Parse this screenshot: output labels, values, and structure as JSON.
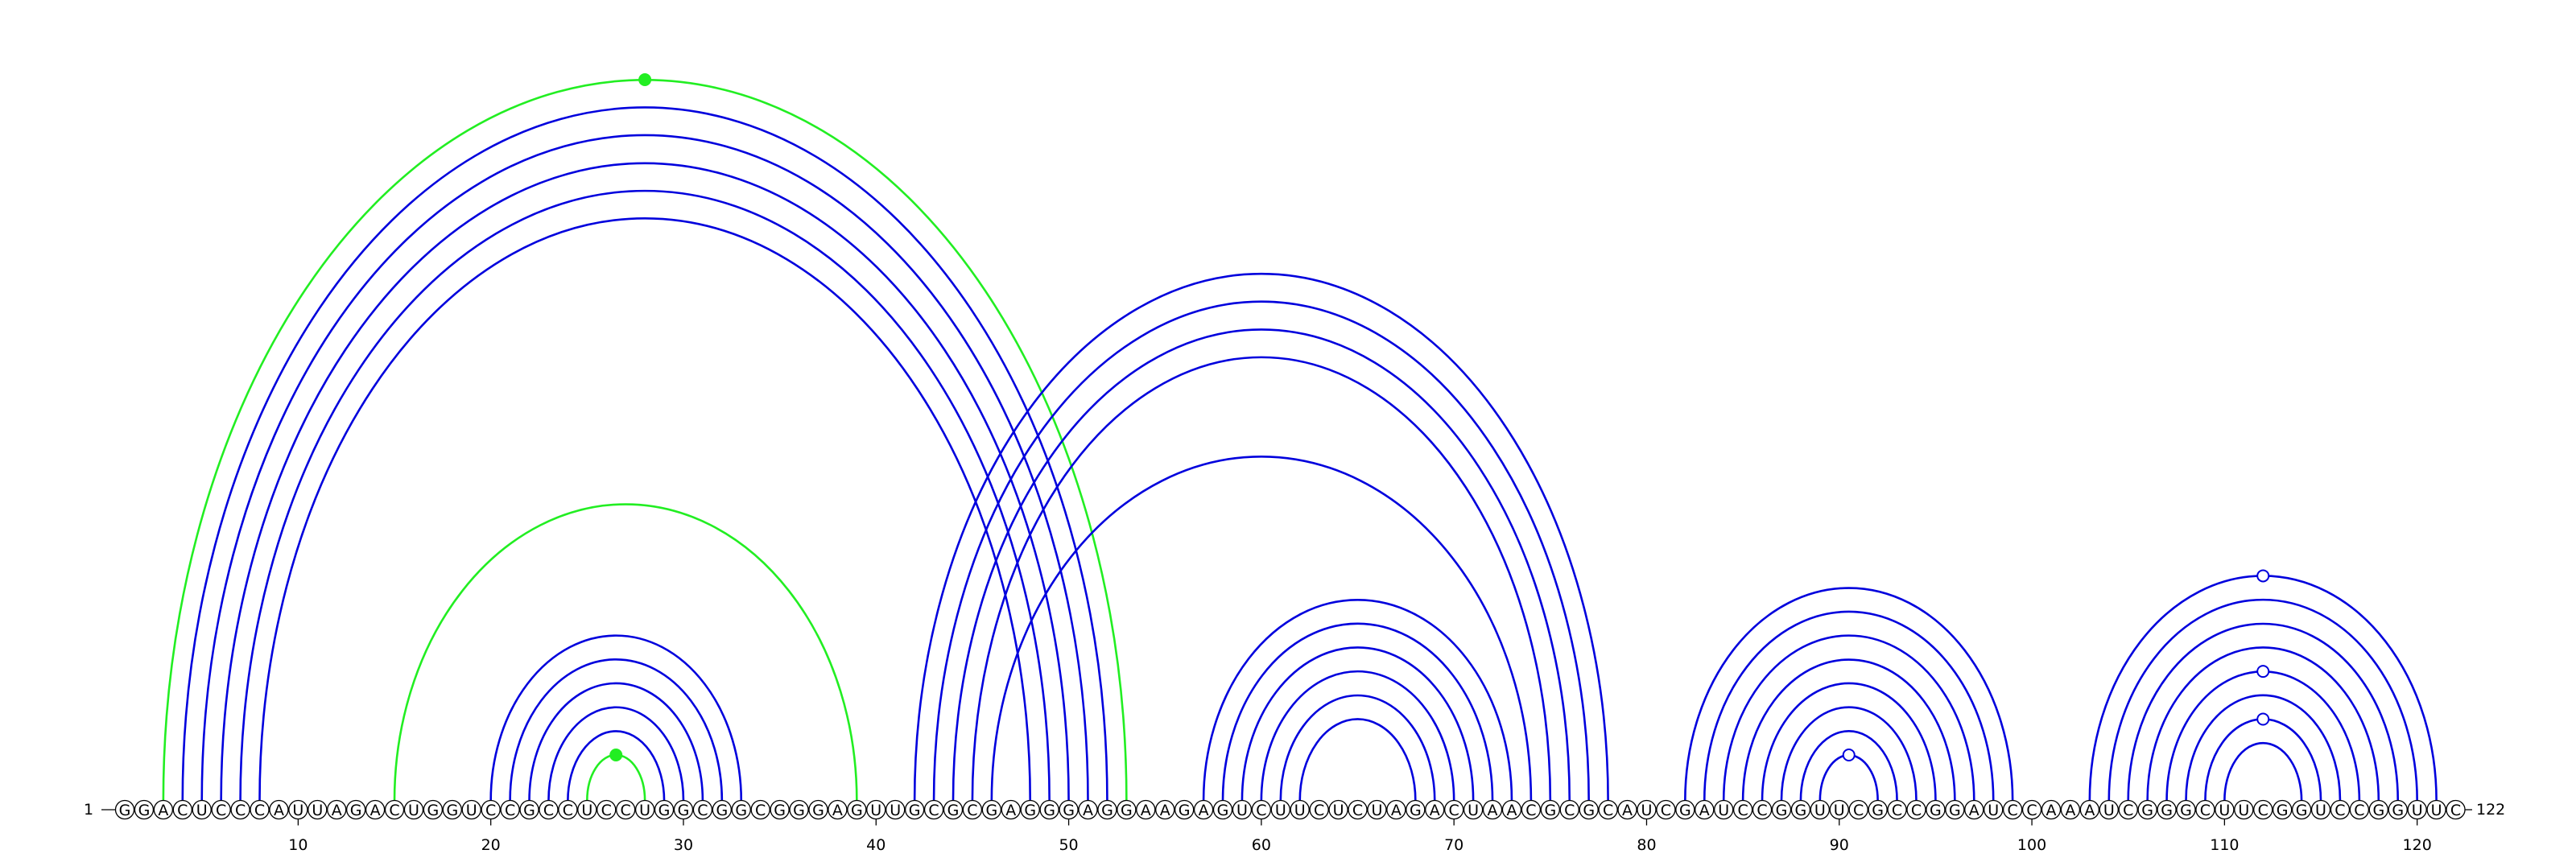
{
  "sequence": "GGACUCCCAUUAGACUGGUCCGCCUCCUGGCGGCGGGAGUUGCGCGAGGGAGGAAGAGUCUUCUCUAGACUAACGCGCAUCGAUCCGGUUCGCCGGAUCCAAAUCGGGCUUCGGUCCGGUUC",
  "start_label": "1",
  "end_label": "122",
  "tick_labels": [
    "10",
    "20",
    "30",
    "40",
    "50",
    "60",
    "70",
    "80",
    "90",
    "100",
    "110",
    "120"
  ],
  "colors": {
    "nested_pair": "#0000dd",
    "pseudoknot_pair": "#22ee22",
    "marker_fill_green": "#22ee22",
    "marker_fill_white": "#ffffff"
  },
  "pairs": [
    {
      "i": 3,
      "j": 53,
      "type": "pseudoknot"
    },
    {
      "i": 4,
      "j": 52,
      "type": "nested"
    },
    {
      "i": 5,
      "j": 51,
      "type": "nested"
    },
    {
      "i": 6,
      "j": 50,
      "type": "nested"
    },
    {
      "i": 7,
      "j": 49,
      "type": "nested"
    },
    {
      "i": 8,
      "j": 48,
      "type": "nested"
    },
    {
      "i": 15,
      "j": 39,
      "type": "pseudoknot"
    },
    {
      "i": 20,
      "j": 33,
      "type": "nested"
    },
    {
      "i": 21,
      "j": 32,
      "type": "nested"
    },
    {
      "i": 22,
      "j": 31,
      "type": "nested"
    },
    {
      "i": 23,
      "j": 30,
      "type": "nested"
    },
    {
      "i": 24,
      "j": 29,
      "type": "nested"
    },
    {
      "i": 25,
      "j": 28,
      "type": "pseudoknot"
    },
    {
      "i": 42,
      "j": 78,
      "type": "nested"
    },
    {
      "i": 43,
      "j": 77,
      "type": "nested"
    },
    {
      "i": 44,
      "j": 76,
      "type": "nested"
    },
    {
      "i": 45,
      "j": 75,
      "type": "nested"
    },
    {
      "i": 46,
      "j": 74,
      "type": "nested"
    },
    {
      "i": 57,
      "j": 73,
      "type": "nested"
    },
    {
      "i": 58,
      "j": 72,
      "type": "nested"
    },
    {
      "i": 59,
      "j": 71,
      "type": "nested"
    },
    {
      "i": 60,
      "j": 70,
      "type": "nested"
    },
    {
      "i": 61,
      "j": 69,
      "type": "nested"
    },
    {
      "i": 62,
      "j": 68,
      "type": "nested"
    },
    {
      "i": 82,
      "j": 99,
      "type": "nested"
    },
    {
      "i": 83,
      "j": 98,
      "type": "nested"
    },
    {
      "i": 84,
      "j": 97,
      "type": "nested"
    },
    {
      "i": 85,
      "j": 96,
      "type": "nested"
    },
    {
      "i": 86,
      "j": 95,
      "type": "nested"
    },
    {
      "i": 87,
      "j": 94,
      "type": "nested"
    },
    {
      "i": 88,
      "j": 93,
      "type": "nested"
    },
    {
      "i": 89,
      "j": 92,
      "type": "nested"
    },
    {
      "i": 103,
      "j": 121,
      "type": "nested"
    },
    {
      "i": 104,
      "j": 120,
      "type": "nested"
    },
    {
      "i": 105,
      "j": 119,
      "type": "nested"
    },
    {
      "i": 106,
      "j": 118,
      "type": "nested"
    },
    {
      "i": 107,
      "j": 117,
      "type": "nested"
    },
    {
      "i": 108,
      "j": 116,
      "type": "nested"
    },
    {
      "i": 109,
      "j": 115,
      "type": "nested"
    },
    {
      "i": 110,
      "j": 114,
      "type": "nested"
    }
  ],
  "markers": [
    {
      "i": 3,
      "j": 53,
      "fill": "green"
    },
    {
      "i": 25,
      "j": 28,
      "fill": "green"
    },
    {
      "i": 89,
      "j": 92,
      "fill": "white"
    },
    {
      "i": 103,
      "j": 121,
      "fill": "white"
    },
    {
      "i": 107,
      "j": 117,
      "fill": "white"
    },
    {
      "i": 109,
      "j": 115,
      "fill": "white"
    }
  ]
}
